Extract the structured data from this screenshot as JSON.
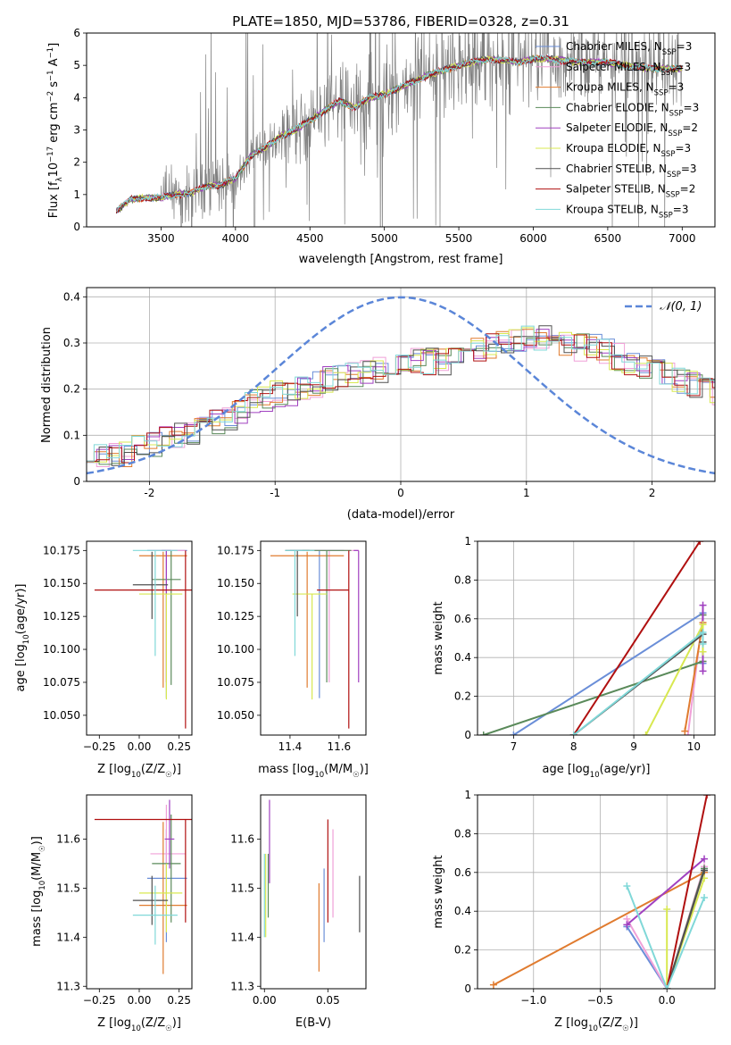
{
  "figure": {
    "title": "PLATE=1850, MJD=53786, FIBERID=0328, z=0.31"
  },
  "series_styles": [
    {
      "name": "Chabrier MILES",
      "nssp": "3",
      "color": "#6a8ed8"
    },
    {
      "name": "Salpeter MILES",
      "nssp": "3",
      "color": "#f0a0d8"
    },
    {
      "name": "Kroupa MILES",
      "nssp": "3",
      "color": "#e07b2f"
    },
    {
      "name": "Chabrier ELODIE",
      "nssp": "3",
      "color": "#5a8a5a"
    },
    {
      "name": "Salpeter ELODIE",
      "nssp": "2",
      "color": "#a040c0"
    },
    {
      "name": "Kroupa ELODIE",
      "nssp": "3",
      "color": "#d8e850"
    },
    {
      "name": "Chabrier STELIB",
      "nssp": "3",
      "color": "#505050"
    },
    {
      "name": "Salpeter STELIB",
      "nssp": "2",
      "color": "#b01010"
    },
    {
      "name": "Kroupa STELIB",
      "nssp": "3",
      "color": "#80d8d8"
    }
  ],
  "chart_data": [
    {
      "id": "spectrum",
      "type": "line",
      "xlabel": "wavelength [Angstrom, rest frame]",
      "ylabel": "Flux [f_λ 10^-17 erg cm^-2 s^-1 A^-1]",
      "xlim": [
        3000,
        7220
      ],
      "ylim": [
        0,
        6
      ],
      "xticks": [
        3500,
        4000,
        4500,
        5000,
        5500,
        6000,
        6500,
        7000
      ],
      "yticks": [
        0,
        1,
        2,
        3,
        4,
        5,
        6
      ],
      "data_color": "#808080",
      "continuum": {
        "x": [
          3200,
          3300,
          3400,
          3500,
          3600,
          3700,
          3800,
          3900,
          4000,
          4100,
          4200,
          4300,
          4400,
          4500,
          4600,
          4700,
          4800,
          4900,
          5000,
          5100,
          5200,
          5300,
          5400,
          5500,
          5600,
          5700,
          5800,
          5900,
          6000,
          6100,
          6200,
          6300,
          6400,
          6500,
          6600,
          6700,
          6800,
          6900,
          7000
        ],
        "y": [
          0.5,
          0.85,
          0.9,
          0.9,
          1.0,
          1.05,
          1.25,
          1.3,
          1.5,
          2.2,
          2.45,
          2.8,
          3.0,
          3.3,
          3.6,
          3.9,
          3.7,
          4.0,
          4.1,
          4.3,
          4.5,
          4.7,
          4.85,
          5.0,
          5.1,
          5.2,
          5.15,
          5.1,
          5.2,
          5.2,
          5.15,
          5.1,
          5.1,
          5.1,
          5.0,
          4.95,
          4.9,
          4.9,
          4.9
        ]
      },
      "legend_position": "upper right"
    },
    {
      "id": "residuals",
      "type": "step",
      "xlabel": "(data-model)/error",
      "ylabel": "Normed distribution",
      "xlim": [
        -2.5,
        2.5
      ],
      "ylim": [
        0,
        0.42
      ],
      "xticks": [
        -2,
        -1,
        0,
        1,
        2
      ],
      "yticks": [
        0.0,
        0.1,
        0.2,
        0.3,
        0.4
      ],
      "bin_width": 0.1,
      "base_profile": [
        0.05,
        0.06,
        0.06,
        0.06,
        0.07,
        0.08,
        0.09,
        0.1,
        0.11,
        0.12,
        0.13,
        0.14,
        0.15,
        0.17,
        0.18,
        0.19,
        0.19,
        0.2,
        0.21,
        0.22,
        0.23,
        0.23,
        0.24,
        0.24,
        0.25,
        0.25,
        0.26,
        0.26,
        0.26,
        0.27,
        0.28,
        0.29,
        0.29,
        0.3,
        0.3,
        0.31,
        0.31,
        0.3,
        0.3,
        0.29,
        0.29,
        0.28,
        0.27,
        0.26,
        0.25,
        0.24,
        0.23,
        0.22,
        0.21,
        0.2,
        0.19,
        0.18,
        0.17,
        0.16,
        0.15,
        0.14,
        0.13,
        0.12,
        0.12,
        0.11,
        0.11,
        0.1,
        0.1,
        0.1,
        0.09,
        0.09,
        0.09,
        0.09,
        0.09,
        0.09
      ],
      "gaussian": {
        "label": "N(0,1)",
        "color": "#5b86d8"
      }
    },
    {
      "id": "age-vs-Z",
      "type": "errorbar",
      "xlabel": "Z [log10(Z/Z☉)]",
      "ylabel": "age [log10(age/yr)]",
      "xlim": [
        -0.33,
        0.33
      ],
      "ylim": [
        10.035,
        10.182
      ],
      "xticks": [
        -0.25,
        0.0,
        0.25
      ],
      "xticklabels": [
        "−0.25",
        "0.00",
        "0.25"
      ],
      "yticks": [
        10.05,
        10.075,
        10.1,
        10.125,
        10.15,
        10.175
      ],
      "yticklabels": [
        "10.050",
        "10.075",
        "10.100",
        "10.125",
        "10.150",
        "10.175"
      ],
      "points": [
        {
          "s": 0,
          "x": 0.17,
          "y": 10.175,
          "xerr": [
            0.12,
            0.13
          ],
          "yerr": [
            0.112,
            0.0
          ]
        },
        {
          "s": 1,
          "x": 0.17,
          "y": 10.175,
          "xerr": [
            0.1,
            0.12
          ],
          "yerr": [
            0.1,
            0.0
          ]
        },
        {
          "s": 2,
          "x": 0.15,
          "y": 10.171,
          "xerr": [
            0.15,
            0.15
          ],
          "yerr": [
            0.1,
            0.003
          ]
        },
        {
          "s": 3,
          "x": 0.2,
          "y": 10.153,
          "xerr": [
            0.12,
            0.06
          ],
          "yerr": [
            0.08,
            0.022
          ]
        },
        {
          "s": 4,
          "x": 0.17,
          "y": 10.175,
          "xerr": [
            0.03,
            0.03
          ],
          "yerr": [
            0.1,
            0.0
          ]
        },
        {
          "s": 5,
          "x": 0.17,
          "y": 10.142,
          "xerr": [
            0.17,
            0.1
          ],
          "yerr": [
            0.08,
            0.0
          ]
        },
        {
          "s": 6,
          "x": 0.08,
          "y": 10.149,
          "xerr": [
            0.12,
            0.1
          ],
          "yerr": [
            0.026,
            0.025
          ]
        },
        {
          "s": 7,
          "x": 0.29,
          "y": 10.145,
          "xerr": [
            0.57,
            0.04
          ],
          "yerr": [
            0.105,
            0.03
          ]
        },
        {
          "s": 8,
          "x": 0.1,
          "y": 10.175,
          "xerr": [
            0.14,
            0.14
          ],
          "yerr": [
            0.08,
            0.0
          ]
        }
      ]
    },
    {
      "id": "age-vs-mass",
      "type": "errorbar",
      "xlabel": "mass [log10(M/M☉)]",
      "ylabel": "",
      "xlim": [
        11.28,
        11.71
      ],
      "ylim": [
        10.035,
        10.182
      ],
      "xticks": [
        11.4,
        11.6
      ],
      "xticklabels": [
        "11.4",
        "11.6"
      ],
      "yticks": [
        10.05,
        10.075,
        10.1,
        10.125,
        10.15,
        10.175
      ],
      "yticklabels": [
        "10.050",
        "10.075",
        "10.100",
        "10.125",
        "10.150",
        "10.175"
      ],
      "points": [
        {
          "s": 0,
          "x": 11.52,
          "y": 10.175,
          "xerr": [
            0.12,
            0.1
          ],
          "yerr": [
            0.112,
            0.0
          ]
        },
        {
          "s": 1,
          "x": 11.56,
          "y": 10.175,
          "xerr": [
            0.1,
            0.12
          ],
          "yerr": [
            0.1,
            0.0
          ]
        },
        {
          "s": 2,
          "x": 11.47,
          "y": 10.171,
          "xerr": [
            0.15,
            0.15
          ],
          "yerr": [
            0.1,
            0.003
          ]
        },
        {
          "s": 3,
          "x": 11.55,
          "y": 10.175,
          "xerr": [
            0.1,
            0.1
          ],
          "yerr": [
            0.1,
            0.0
          ]
        },
        {
          "s": 4,
          "x": 11.68,
          "y": 10.175,
          "xerr": [
            0.02,
            0.0
          ],
          "yerr": [
            0.1,
            0.0
          ]
        },
        {
          "s": 5,
          "x": 11.49,
          "y": 10.142,
          "xerr": [
            0.08,
            0.06
          ],
          "yerr": [
            0.08,
            0.0
          ]
        },
        {
          "s": 6,
          "x": 11.43,
          "y": 10.175,
          "xerr": [
            0.05,
            0.05
          ],
          "yerr": [
            0.05,
            0.0
          ]
        },
        {
          "s": 7,
          "x": 11.64,
          "y": 10.145,
          "xerr": [
            0.13,
            0.0
          ],
          "yerr": [
            0.105,
            0.03
          ]
        },
        {
          "s": 8,
          "x": 11.42,
          "y": 10.175,
          "xerr": [
            0.04,
            0.08
          ],
          "yerr": [
            0.08,
            0.0
          ]
        }
      ]
    },
    {
      "id": "mass-weight-vs-age",
      "type": "line",
      "xlabel": "age [log10(age/yr)]",
      "ylabel": "mass weight",
      "xlim": [
        6.4,
        10.35
      ],
      "ylim": [
        0,
        1
      ],
      "xticks": [
        7,
        8,
        9,
        10
      ],
      "yticks": [
        0.0,
        0.2,
        0.4,
        0.6,
        0.8,
        1.0
      ],
      "series": [
        {
          "s": 0,
          "x": [
            7.0,
            10.15,
            10.15
          ],
          "y": [
            0.0,
            0.63,
            0.37
          ]
        },
        {
          "s": 1,
          "x": [
            9.9,
            10.15,
            10.15
          ],
          "y": [
            0.0,
            0.62,
            0.38
          ]
        },
        {
          "s": 2,
          "x": [
            9.85,
            10.15
          ],
          "y": [
            0.02,
            0.58
          ]
        },
        {
          "s": 3,
          "x": [
            6.5,
            10.15,
            10.15
          ],
          "y": [
            0.0,
            0.38,
            0.62
          ]
        },
        {
          "s": 4,
          "x": [
            10.15,
            10.15
          ],
          "y": [
            0.33,
            0.67
          ]
        },
        {
          "s": 5,
          "x": [
            9.2,
            10.15,
            10.15
          ],
          "y": [
            0.0,
            0.57,
            0.43
          ]
        },
        {
          "s": 6,
          "x": [
            8.0,
            10.15,
            10.15
          ],
          "y": [
            0.0,
            0.52,
            0.48
          ]
        },
        {
          "s": 7,
          "x": [
            8.0,
            10.1
          ],
          "y": [
            0.0,
            1.0
          ]
        },
        {
          "s": 8,
          "x": [
            8.0,
            10.15,
            10.15
          ],
          "y": [
            0.0,
            0.53,
            0.47
          ]
        }
      ]
    },
    {
      "id": "mass-vs-Z",
      "type": "errorbar",
      "xlabel": "Z [log10(Z/Z☉)]",
      "ylabel": "mass [log10(M/M☉)]",
      "xlim": [
        -0.33,
        0.33
      ],
      "ylim": [
        11.295,
        11.69
      ],
      "xticks": [
        -0.25,
        0.0,
        0.25
      ],
      "xticklabels": [
        "−0.25",
        "0.00",
        "0.25"
      ],
      "yticks": [
        11.3,
        11.4,
        11.5,
        11.6
      ],
      "yticklabels": [
        "11.3",
        "11.4",
        "11.5",
        "11.6"
      ],
      "points": [
        {
          "s": 0,
          "x": 0.17,
          "y": 11.52,
          "xerr": [
            0.12,
            0.13
          ],
          "yerr": [
            0.13,
            0.1
          ]
        },
        {
          "s": 1,
          "x": 0.17,
          "y": 11.57,
          "xerr": [
            0.1,
            0.12
          ],
          "yerr": [
            0.1,
            0.1
          ]
        },
        {
          "s": 2,
          "x": 0.15,
          "y": 11.465,
          "xerr": [
            0.15,
            0.15
          ],
          "yerr": [
            0.14,
            0.17
          ]
        },
        {
          "s": 3,
          "x": 0.2,
          "y": 11.55,
          "xerr": [
            0.12,
            0.06
          ],
          "yerr": [
            0.12,
            0.1
          ]
        },
        {
          "s": 4,
          "x": 0.19,
          "y": 11.6,
          "xerr": [
            0.03,
            0.03
          ],
          "yerr": [
            0.06,
            0.08
          ]
        },
        {
          "s": 5,
          "x": 0.17,
          "y": 11.49,
          "xerr": [
            0.17,
            0.1
          ],
          "yerr": [
            0.08,
            0.06
          ]
        },
        {
          "s": 6,
          "x": 0.08,
          "y": 11.475,
          "xerr": [
            0.12,
            0.1
          ],
          "yerr": [
            0.05,
            0.05
          ]
        },
        {
          "s": 7,
          "x": 0.29,
          "y": 11.64,
          "xerr": [
            0.57,
            0.04
          ],
          "yerr": [
            0.21,
            0.0
          ]
        },
        {
          "s": 8,
          "x": 0.1,
          "y": 11.445,
          "xerr": [
            0.14,
            0.14
          ],
          "yerr": [
            0.06,
            0.06
          ]
        }
      ]
    },
    {
      "id": "mass-vs-EBV",
      "type": "errorbar",
      "xlabel": "E(B-V)",
      "ylabel": "",
      "xlim": [
        -0.003,
        0.08
      ],
      "ylim": [
        11.295,
        11.69
      ],
      "xticks": [
        0.0,
        0.05
      ],
      "xticklabels": [
        "0.00",
        "0.05"
      ],
      "yticks": [
        11.3,
        11.4,
        11.5,
        11.6
      ],
      "yticklabels": [
        "11.3",
        "11.4",
        "11.5",
        "11.6"
      ],
      "points": [
        {
          "s": 0,
          "x": 0.047,
          "y": 11.44,
          "xerr": [
            0,
            0
          ],
          "yerr": [
            0.05,
            0.1
          ]
        },
        {
          "s": 1,
          "x": 0.054,
          "y": 11.53,
          "xerr": [
            0,
            0
          ],
          "yerr": [
            0.09,
            0.09
          ]
        },
        {
          "s": 2,
          "x": 0.043,
          "y": 11.42,
          "xerr": [
            0,
            0
          ],
          "yerr": [
            0.09,
            0.09
          ]
        },
        {
          "s": 3,
          "x": 0.003,
          "y": 11.5,
          "xerr": [
            0,
            0
          ],
          "yerr": [
            0.06,
            0.07
          ]
        },
        {
          "s": 4,
          "x": 0.004,
          "y": 11.59,
          "xerr": [
            0,
            0
          ],
          "yerr": [
            0.08,
            0.09
          ]
        },
        {
          "s": 5,
          "x": 0.001,
          "y": 11.49,
          "xerr": [
            0,
            0
          ],
          "yerr": [
            0.09,
            0.08
          ]
        },
        {
          "s": 6,
          "x": 0.075,
          "y": 11.47,
          "xerr": [
            0,
            0
          ],
          "yerr": [
            0.06,
            0.055
          ]
        },
        {
          "s": 7,
          "x": 0.05,
          "y": 11.53,
          "xerr": [
            0,
            0
          ],
          "yerr": [
            0.1,
            0.11
          ]
        },
        {
          "s": 8,
          "x": 0.0,
          "y": 11.48,
          "xerr": [
            0,
            0
          ],
          "yerr": [
            0.08,
            0.09
          ]
        }
      ]
    },
    {
      "id": "mass-weight-vs-Z",
      "type": "line",
      "xlabel": "Z [log10(Z/Z☉)]",
      "ylabel": "mass weight",
      "xlim": [
        -1.42,
        0.36
      ],
      "ylim": [
        0,
        1
      ],
      "xticks": [
        -1.0,
        -0.5,
        0.0
      ],
      "xticklabels": [
        "−1.0",
        "−0.5",
        "0.0"
      ],
      "yticks": [
        0.0,
        0.2,
        0.4,
        0.6,
        0.8,
        1.0
      ],
      "series": [
        {
          "s": 0,
          "x": [
            -0.3,
            0.0,
            0.28
          ],
          "y": [
            0.32,
            0.0,
            0.62
          ]
        },
        {
          "s": 1,
          "x": [
            -0.3,
            0.0,
            0.28
          ],
          "y": [
            0.36,
            0.0,
            0.63
          ]
        },
        {
          "s": 2,
          "x": [
            -1.3,
            0.28
          ],
          "y": [
            0.02,
            0.6
          ]
        },
        {
          "s": 3,
          "x": [
            0.0,
            0.28
          ],
          "y": [
            0.0,
            0.62
          ]
        },
        {
          "s": 4,
          "x": [
            -0.3,
            0.28
          ],
          "y": [
            0.33,
            0.67
          ]
        },
        {
          "s": 5,
          "x": [
            0.0,
            0.0,
            0.28
          ],
          "y": [
            0.41,
            0.0,
            0.57
          ]
        },
        {
          "s": 6,
          "x": [
            0.0,
            0.28
          ],
          "y": [
            0.0,
            0.61
          ]
        },
        {
          "s": 7,
          "x": [
            0.0,
            0.3
          ],
          "y": [
            0.0,
            1.0
          ]
        },
        {
          "s": 8,
          "x": [
            -0.3,
            0.0,
            0.28
          ],
          "y": [
            0.53,
            0.0,
            0.47
          ]
        }
      ]
    }
  ]
}
